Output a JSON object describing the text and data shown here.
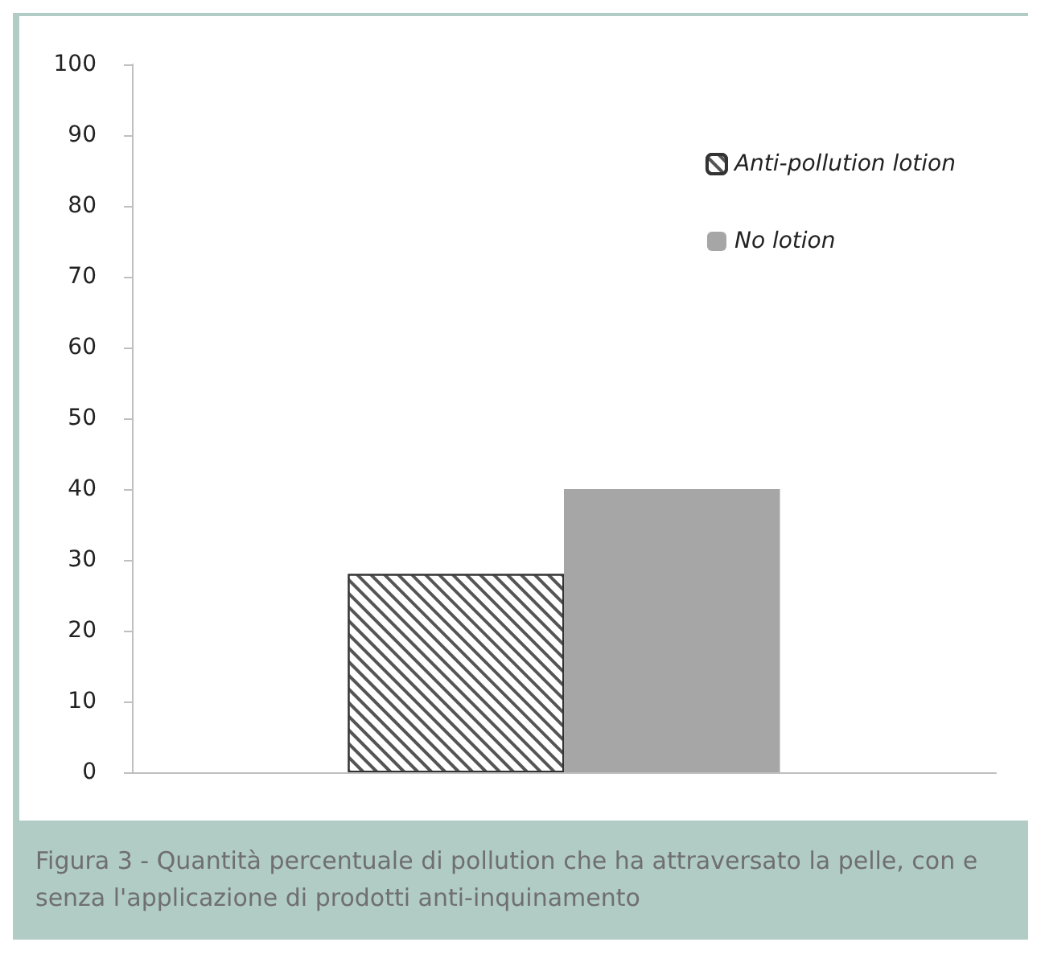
{
  "chart_data": {
    "type": "bar",
    "categories": [
      null
    ],
    "series": [
      {
        "name": "Anti-pollution lotion",
        "color": "#ffffff",
        "values": [
          28
        ]
      },
      {
        "name": "No lotion",
        "color": "#a6a6a6",
        "values": [
          40
        ]
      }
    ],
    "ylim": [
      0,
      100
    ],
    "yticks": [
      0,
      10,
      20,
      30,
      40,
      50,
      60,
      70,
      80,
      90,
      100
    ],
    "grid": false,
    "legend": "top right",
    "annotations": [
      "Figura 3 - Quantità percentuale di pollution che ha attraversato la pelle, con e senza l'applicazione di prodotti anti-inquinamento"
    ]
  }
}
